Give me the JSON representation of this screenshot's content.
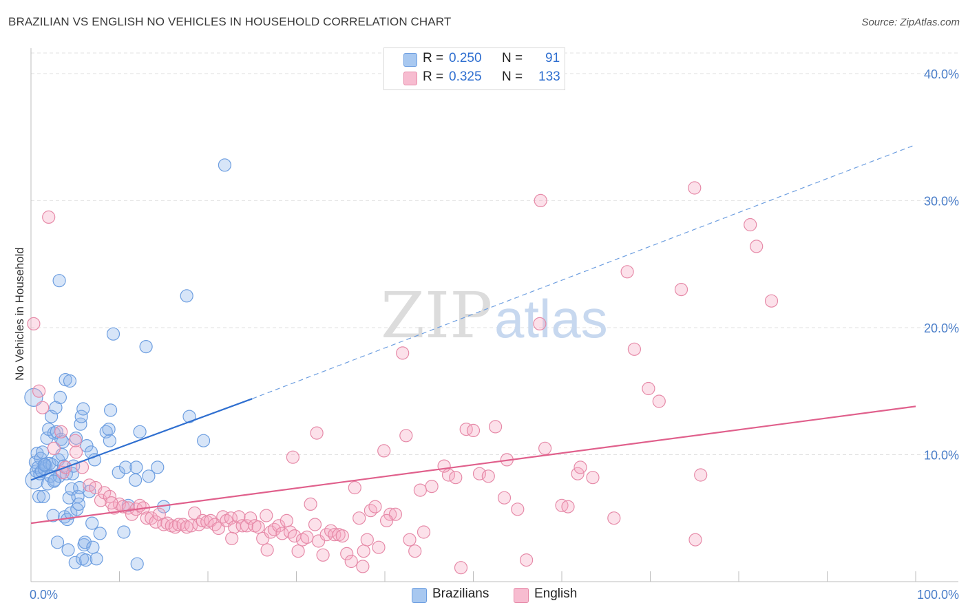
{
  "header": {
    "title": "BRAZILIAN VS ENGLISH NO VEHICLES IN HOUSEHOLD CORRELATION CHART",
    "source": "Source: ZipAtlas.com"
  },
  "watermark": {
    "zip": "ZIP",
    "atlas": "atlas"
  },
  "legend": {
    "rows": [
      {
        "r_label": "R =",
        "r_value": "0.250",
        "n_label": "N =",
        "n_value": "91",
        "color": "#a8c8f0",
        "border": "#6d9ee0"
      },
      {
        "r_label": "R =",
        "r_value": "0.325",
        "n_label": "N =",
        "n_value": "133",
        "color": "#f7bcd0",
        "border": "#e68aa8"
      }
    ]
  },
  "bottom_legend": [
    {
      "label": "Brazilians",
      "color": "#a8c8f0",
      "border": "#6d9ee0"
    },
    {
      "label": "English",
      "color": "#f7bcd0",
      "border": "#e68aa8"
    }
  ],
  "chart_data": {
    "type": "scatter",
    "title": "BRAZILIAN VS ENGLISH NO VEHICLES IN HOUSEHOLD CORRELATION CHART",
    "xlabel": "",
    "ylabel": "No Vehicles in Household",
    "xlim": [
      0,
      100
    ],
    "ylim": [
      0,
      42
    ],
    "x_tick_labels": [
      "0.0%",
      "100.0%"
    ],
    "y_ticks": [
      10,
      20,
      30,
      40
    ],
    "y_tick_labels": [
      "10.0%",
      "20.0%",
      "30.0%",
      "40.0%"
    ],
    "grid": true,
    "legend_position": "top-center",
    "series": [
      {
        "name": "Brazilians",
        "color": "#6d9ee0",
        "fill": "rgba(140,180,235,0.35)",
        "R": 0.25,
        "N": 91,
        "trend": {
          "x0": 0,
          "y0": 8.0,
          "x_solid_end": 25,
          "y_solid_end": 14.4,
          "x1": 100,
          "y1": 34.4,
          "color": "#2f6fd0"
        },
        "points": [
          [
            0.3,
            14.5
          ],
          [
            0.4,
            8.0
          ],
          [
            0.5,
            9.4
          ],
          [
            0.6,
            8.7
          ],
          [
            0.7,
            10.1
          ],
          [
            0.8,
            9.0
          ],
          [
            0.9,
            6.7
          ],
          [
            1.0,
            8.5
          ],
          [
            1.1,
            9.7
          ],
          [
            1.2,
            8.7
          ],
          [
            1.3,
            10.2
          ],
          [
            1.4,
            6.7
          ],
          [
            1.5,
            8.9
          ],
          [
            1.6,
            9.2
          ],
          [
            1.7,
            9.1
          ],
          [
            1.8,
            11.3
          ],
          [
            1.9,
            7.7
          ],
          [
            2.0,
            12.0
          ],
          [
            2.1,
            9.3
          ],
          [
            2.2,
            8.3
          ],
          [
            2.3,
            13.0
          ],
          [
            2.4,
            9.2
          ],
          [
            2.5,
            5.2
          ],
          [
            2.6,
            11.7
          ],
          [
            2.7,
            8.0
          ],
          [
            2.8,
            13.7
          ],
          [
            2.9,
            11.8
          ],
          [
            3.0,
            3.1
          ],
          [
            3.1,
            9.6
          ],
          [
            3.2,
            8.3
          ],
          [
            3.3,
            14.5
          ],
          [
            3.4,
            11.2
          ],
          [
            3.5,
            10.0
          ],
          [
            3.6,
            11.0
          ],
          [
            3.7,
            9.1
          ],
          [
            3.8,
            5.1
          ],
          [
            3.9,
            15.9
          ],
          [
            4.0,
            8.5
          ],
          [
            4.1,
            4.9
          ],
          [
            4.2,
            2.5
          ],
          [
            4.3,
            6.6
          ],
          [
            4.4,
            15.8
          ],
          [
            4.5,
            5.4
          ],
          [
            4.6,
            7.3
          ],
          [
            4.7,
            8.5
          ],
          [
            4.8,
            9.1
          ],
          [
            5.0,
            1.5
          ],
          [
            5.1,
            11.3
          ],
          [
            5.2,
            5.7
          ],
          [
            5.3,
            6.7
          ],
          [
            5.4,
            6.1
          ],
          [
            5.5,
            7.4
          ],
          [
            5.6,
            12.4
          ],
          [
            5.7,
            13.0
          ],
          [
            5.8,
            1.8
          ],
          [
            5.9,
            13.6
          ],
          [
            6.0,
            2.9
          ],
          [
            6.1,
            3.1
          ],
          [
            6.2,
            1.7
          ],
          [
            6.3,
            10.7
          ],
          [
            6.6,
            7.1
          ],
          [
            6.8,
            10.2
          ],
          [
            6.9,
            4.6
          ],
          [
            7.0,
            2.7
          ],
          [
            7.2,
            9.6
          ],
          [
            7.4,
            1.8
          ],
          [
            7.8,
            3.8
          ],
          [
            8.5,
            11.8
          ],
          [
            8.8,
            12.0
          ],
          [
            8.9,
            11.1
          ],
          [
            9.0,
            13.5
          ],
          [
            9.3,
            19.5
          ],
          [
            9.9,
            8.6
          ],
          [
            10.5,
            3.9
          ],
          [
            10.7,
            9.0
          ],
          [
            11.0,
            6.0
          ],
          [
            11.8,
            8.0
          ],
          [
            11.9,
            9.0
          ],
          [
            12.0,
            1.4
          ],
          [
            12.3,
            11.8
          ],
          [
            13.0,
            18.5
          ],
          [
            13.3,
            8.3
          ],
          [
            14.3,
            9.0
          ],
          [
            15.0,
            5.9
          ],
          [
            17.6,
            22.5
          ],
          [
            17.9,
            13.0
          ],
          [
            19.5,
            11.1
          ],
          [
            21.9,
            32.8
          ],
          [
            3.2,
            23.7
          ],
          [
            1.5,
            9.2
          ],
          [
            2.6,
            7.9
          ]
        ]
      },
      {
        "name": "English",
        "color": "#e68aa8",
        "fill": "rgba(245,170,195,0.35)",
        "R": 0.325,
        "N": 133,
        "trend": {
          "x0": 0,
          "y0": 4.6,
          "x1": 100,
          "y1": 13.8,
          "color": "#e0608c"
        },
        "points": [
          [
            0.3,
            20.3
          ],
          [
            0.9,
            15.0
          ],
          [
            1.3,
            13.7
          ],
          [
            2.0,
            28.7
          ],
          [
            2.6,
            10.5
          ],
          [
            3.4,
            11.8
          ],
          [
            3.6,
            8.6
          ],
          [
            3.9,
            9.0
          ],
          [
            5.0,
            11.1
          ],
          [
            5.1,
            10.2
          ],
          [
            5.8,
            9.0
          ],
          [
            6.6,
            7.6
          ],
          [
            7.3,
            7.4
          ],
          [
            7.9,
            6.4
          ],
          [
            8.3,
            7.0
          ],
          [
            8.9,
            6.7
          ],
          [
            9.4,
            5.8
          ],
          [
            10.0,
            6.1
          ],
          [
            10.4,
            5.9
          ],
          [
            11.0,
            5.8
          ],
          [
            11.4,
            5.3
          ],
          [
            11.9,
            5.7
          ],
          [
            12.3,
            6.0
          ],
          [
            12.7,
            5.8
          ],
          [
            13.1,
            5.0
          ],
          [
            13.6,
            5.0
          ],
          [
            14.1,
            4.7
          ],
          [
            14.5,
            5.3
          ],
          [
            15.0,
            4.5
          ],
          [
            15.4,
            4.6
          ],
          [
            15.9,
            4.4
          ],
          [
            16.3,
            4.3
          ],
          [
            16.7,
            4.5
          ],
          [
            17.2,
            4.5
          ],
          [
            17.6,
            4.3
          ],
          [
            18.1,
            4.4
          ],
          [
            18.5,
            5.4
          ],
          [
            19.0,
            4.5
          ],
          [
            19.4,
            4.8
          ],
          [
            19.9,
            4.7
          ],
          [
            20.3,
            4.8
          ],
          [
            20.8,
            4.5
          ],
          [
            21.2,
            4.2
          ],
          [
            21.7,
            5.1
          ],
          [
            22.1,
            4.8
          ],
          [
            22.6,
            5.0
          ],
          [
            23.0,
            4.3
          ],
          [
            23.5,
            5.1
          ],
          [
            23.9,
            4.4
          ],
          [
            24.4,
            4.4
          ],
          [
            24.8,
            5.0
          ],
          [
            25.3,
            4.4
          ],
          [
            25.7,
            4.3
          ],
          [
            26.2,
            3.4
          ],
          [
            26.6,
            5.2
          ],
          [
            27.1,
            3.9
          ],
          [
            27.5,
            4.1
          ],
          [
            28.0,
            4.4
          ],
          [
            28.4,
            3.8
          ],
          [
            28.9,
            4.8
          ],
          [
            29.3,
            3.9
          ],
          [
            29.8,
            3.6
          ],
          [
            30.2,
            2.4
          ],
          [
            30.7,
            3.3
          ],
          [
            31.2,
            3.5
          ],
          [
            31.6,
            6.1
          ],
          [
            32.1,
            4.5
          ],
          [
            32.5,
            3.2
          ],
          [
            33.0,
            2.1
          ],
          [
            33.4,
            3.7
          ],
          [
            33.9,
            4.0
          ],
          [
            34.3,
            3.7
          ],
          [
            34.8,
            3.7
          ],
          [
            35.2,
            3.6
          ],
          [
            35.7,
            2.2
          ],
          [
            36.2,
            1.6
          ],
          [
            36.6,
            7.4
          ],
          [
            37.1,
            5.0
          ],
          [
            37.6,
            2.4
          ],
          [
            38.0,
            3.3
          ],
          [
            38.4,
            5.6
          ],
          [
            38.9,
            5.9
          ],
          [
            39.3,
            2.7
          ],
          [
            39.9,
            10.3
          ],
          [
            40.6,
            5.3
          ],
          [
            41.2,
            5.3
          ],
          [
            42.0,
            18.0
          ],
          [
            42.4,
            11.5
          ],
          [
            42.8,
            3.3
          ],
          [
            43.4,
            2.4
          ],
          [
            44.0,
            7.2
          ],
          [
            44.4,
            3.9
          ],
          [
            45.3,
            7.5
          ],
          [
            47.2,
            8.4
          ],
          [
            48.0,
            8.2
          ],
          [
            49.2,
            12.0
          ],
          [
            50.0,
            11.9
          ],
          [
            50.7,
            8.5
          ],
          [
            51.7,
            8.3
          ],
          [
            52.5,
            12.2
          ],
          [
            53.5,
            6.6
          ],
          [
            53.8,
            9.6
          ],
          [
            55.0,
            5.7
          ],
          [
            56.0,
            1.7
          ],
          [
            57.5,
            20.3
          ],
          [
            58.1,
            10.5
          ],
          [
            60.0,
            6.0
          ],
          [
            60.7,
            5.9
          ],
          [
            61.8,
            8.5
          ],
          [
            62.1,
            9.0
          ],
          [
            63.5,
            8.2
          ],
          [
            65.9,
            5.0
          ],
          [
            67.4,
            24.4
          ],
          [
            68.2,
            18.3
          ],
          [
            69.8,
            15.2
          ],
          [
            71.0,
            14.2
          ],
          [
            73.5,
            23.0
          ],
          [
            75.1,
            3.3
          ],
          [
            75.7,
            8.4
          ],
          [
            81.3,
            28.1
          ],
          [
            82.0,
            26.4
          ],
          [
            83.7,
            22.1
          ],
          [
            57.6,
            30.0
          ],
          [
            75.0,
            31.0
          ],
          [
            32.3,
            11.7
          ],
          [
            46.7,
            9.1
          ],
          [
            40.2,
            4.8
          ],
          [
            29.6,
            9.8
          ],
          [
            22.7,
            3.4
          ],
          [
            9.1,
            6.2
          ],
          [
            26.7,
            2.5
          ],
          [
            37.5,
            1.2
          ],
          [
            48.6,
            1.1
          ]
        ]
      }
    ]
  }
}
